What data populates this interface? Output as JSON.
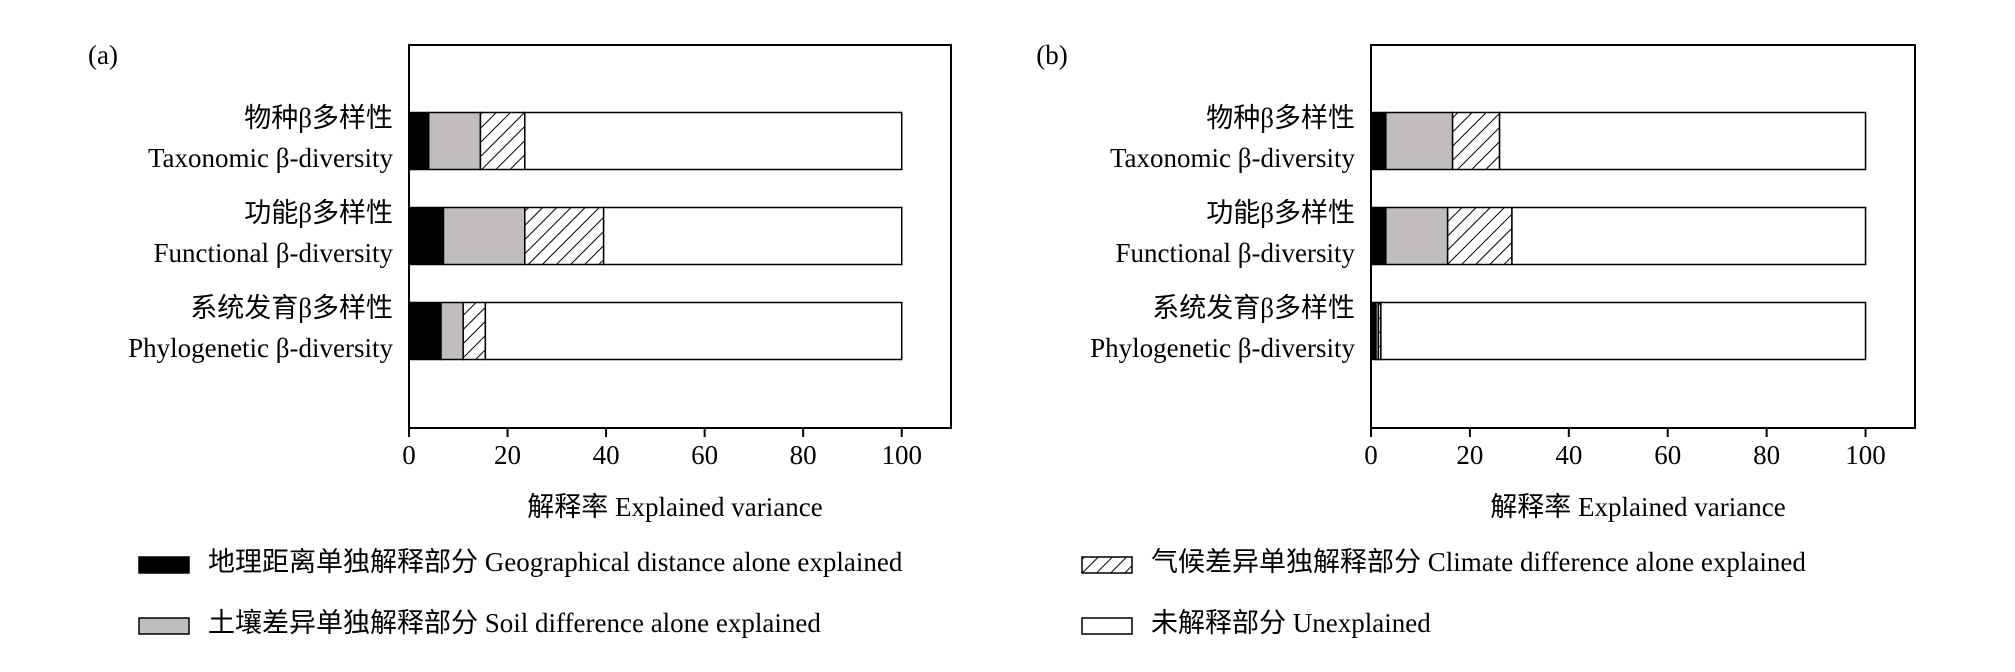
{
  "chart_data": [
    {
      "type": "bar",
      "orientation": "horizontal",
      "stacked": true,
      "panel": "(a)",
      "x_label": "解释率 Explained variance",
      "categories": [
        [
          "物种β多样性",
          "Taxonomic β-diversity"
        ],
        [
          "功能β多样性",
          "Functional β-diversity"
        ],
        [
          "系统发育β多样性",
          "Phylogenetic β-diversity"
        ]
      ],
      "series": [
        {
          "name": "地理距离单独解释部分 Geographical distance alone explained",
          "color": "#000000",
          "values": [
            4,
            7,
            6.5
          ]
        },
        {
          "name": "土壤差异单独解释部分 Soil difference alone explained",
          "color": "#c0bcbf",
          "values": [
            10.5,
            16.5,
            4.5
          ]
        },
        {
          "name": "气候差异单独解释部分 Climate difference alone explained",
          "color": "#ffffff",
          "hatch": true,
          "values": [
            9,
            16,
            4.5
          ]
        },
        {
          "name": "未解释部分 Unexplained",
          "color": "#ffffff",
          "values": [
            76.5,
            60.5,
            84.5
          ]
        }
      ],
      "xlim": [
        0,
        110
      ],
      "xticks": [
        0,
        20,
        40,
        60,
        80,
        100
      ]
    },
    {
      "type": "bar",
      "orientation": "horizontal",
      "stacked": true,
      "panel": "(b)",
      "x_label": "解释率 Explained variance",
      "categories": [
        [
          "物种β多样性",
          "Taxonomic β-diversity"
        ],
        [
          "功能β多样性",
          "Functional β-diversity"
        ],
        [
          "系统发育β多样性",
          "Phylogenetic β-diversity"
        ]
      ],
      "series": [
        {
          "color": "#000000",
          "values": [
            3,
            3,
            1
          ]
        },
        {
          "color": "#c0bcbf",
          "values": [
            13.5,
            12.5,
            0.5
          ]
        },
        {
          "color": "#ffffff",
          "hatch": true,
          "values": [
            9.5,
            13,
            0.5
          ]
        },
        {
          "color": "#ffffff",
          "values": [
            74,
            71.5,
            98
          ]
        }
      ],
      "xlim": [
        0,
        110
      ],
      "xticks": [
        0,
        20,
        40,
        60,
        80,
        100
      ]
    }
  ]
}
